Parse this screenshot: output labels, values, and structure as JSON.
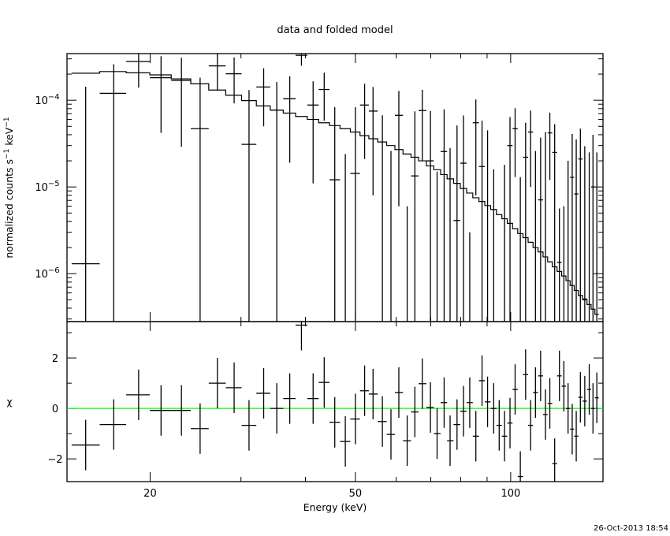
{
  "chart_data": [
    {
      "type": "scatter",
      "panel": "top",
      "title": "data and folded model",
      "ylabel": "normalized counts s⁻¹ keV⁻¹",
      "ylabel_parts": {
        "a": "normalized counts s",
        "b": "−1",
        "c": " keV",
        "d": "−1"
      },
      "xscale": "log",
      "yscale": "log",
      "xlim": [
        13.8,
        151
      ],
      "ylim": [
        2.8e-07,
        0.000345
      ],
      "ytick_values": [
        0.0001,
        1e-05,
        1e-06
      ],
      "ytick_labels": [
        {
          "base": "10",
          "exp": "−4"
        },
        {
          "base": "10",
          "exp": "−5"
        },
        {
          "base": "10",
          "exp": "−6"
        }
      ],
      "grid": false,
      "energies": [
        15.0,
        17.0,
        19.0,
        21.0,
        23.0,
        25.0,
        27.0,
        29.1,
        31.1,
        33.2,
        35.2,
        37.3,
        39.3,
        41.4,
        43.5,
        45.6,
        47.8,
        50.0,
        52.1,
        54.1,
        56.4,
        58.6,
        60.7,
        63.0,
        65.2,
        67.4,
        69.9,
        72.0,
        74.3,
        76.3,
        78.7,
        81.0,
        83.3,
        85.6,
        88.0,
        90.2,
        92.7,
        95.0,
        97.3,
        99.7,
        102.0,
        104.4,
        106.9,
        109.3,
        111.7,
        114.3,
        116.8,
        119.1,
        121.7,
        124.3,
        126.8,
        129.2,
        131.6,
        134.0,
        136.5,
        139.2,
        142.0,
        144.4,
        146.9
      ],
      "values": [
        1.3e-06,
        0.00012,
        0.00028,
        0.000182,
        0.000169,
        4.7e-05,
        0.000249,
        0.000202,
        3.1e-05,
        0.000142,
        7.7e-05,
        0.000104,
        0.00033,
        8.8e-05,
        0.000133,
        1.21e-05,
        -4e-05,
        1.43e-05,
        8.8e-05,
        7.5e-05,
        -1e-06,
        -3e-05,
        6.7e-05,
        -5e-05,
        1.34e-05,
        7.6e-05,
        2e-05,
        -3.5e-05,
        2.56e-05,
        -4e-05,
        4.1e-06,
        1.88e-05,
        -4e-05,
        5.5e-05,
        1.72e-05,
        -5e-06,
        -2.5e-05,
        -4.5e-05,
        -2.2e-05,
        3e-05,
        4.7e-05,
        -4e-05,
        2.2e-05,
        4.3e-05,
        -1e-05,
        7.1e-06,
        -1.5e-05,
        4.2e-05,
        2.5e-05,
        1.35e-06,
        -2e-05,
        -1e-05,
        1.29e-05,
        8.3e-06,
        2.1e-05,
        5.1e-07,
        -5e-06,
        1e-05,
        -1e-05
      ],
      "errors": [
        0.000142,
        0.00014,
        0.00014,
        0.00014,
        0.00014,
        0.000135,
        0.00012,
        0.00011,
        0.0001,
        9.2e-05,
        8.5e-05,
        8.5e-05,
        8e-05,
        7.7e-05,
        7.5e-05,
        7.1e-05,
        6.4e-05,
        6.9e-05,
        6.7e-05,
        6.7e-05,
        6.8e-05,
        5.6e-05,
        6.1e-05,
        5.6e-05,
        6.1e-05,
        5.6e-05,
        5.5e-05,
        5e-05,
        5.3e-05,
        6.8e-05,
        4.7e-05,
        4.8e-05,
        4.3e-05,
        4.7e-05,
        4.1e-05,
        5e-05,
        4.1e-05,
        4.5e-05,
        4e-05,
        3.4e-05,
        3.4e-05,
        5.3e-05,
        3.3e-05,
        3.3e-05,
        3.6e-05,
        3e-05,
        5.8e-05,
        3e-05,
        2.8e-05,
        4.3e-06,
        2.6e-05,
        3e-05,
        2.8e-05,
        2.7e-05,
        2.6e-05,
        2.9e-05,
        3e-05,
        3e-05,
        3.5e-05
      ],
      "model": [
        0.000205,
        0.000214,
        0.000207,
        0.000196,
        0.000176,
        0.000155,
        0.000131,
        0.000114,
        9.9e-05,
        8.6e-05,
        7.7e-05,
        7.1e-05,
        6.5e-05,
        6e-05,
        5.5e-05,
        5.1e-05,
        4.7e-05,
        4.3e-05,
        3.9e-05,
        3.6e-05,
        3.3e-05,
        3e-05,
        2.7e-05,
        2.4e-05,
        2.2e-05,
        2e-05,
        1.75e-05,
        1.58e-05,
        1.39e-05,
        1.24e-05,
        1.1e-05,
        9.6e-06,
        8.5e-06,
        7.5e-06,
        6.8e-06,
        6.1e-06,
        5.5e-06,
        4.8e-06,
        4.3e-06,
        3.8e-06,
        3.3e-06,
        2.9e-06,
        2.6e-06,
        2.3e-06,
        2e-06,
        1.78e-06,
        1.56e-06,
        1.37e-06,
        1.2e-06,
        1.06e-06,
        9.4e-07,
        8.3e-07,
        7.3e-07,
        6.4e-07,
        5.6e-07,
        5e-07,
        4.4e-07,
        3.9e-07,
        3.4e-07
      ]
    },
    {
      "type": "scatter",
      "panel": "bottom",
      "xlabel": "Energy (keV)",
      "ylabel": "χ",
      "xscale": "log",
      "xlim": [
        13.8,
        151
      ],
      "ylim": [
        -2.9,
        3.44
      ],
      "xtick_values": [
        20,
        50,
        100
      ],
      "xtick_labels": [
        "20",
        "50",
        "100"
      ],
      "ytick_values": [
        2,
        0,
        -2
      ],
      "ytick_labels": [
        "2",
        "0",
        "−2"
      ],
      "zero_line_color": "#00ff00",
      "residuals": [
        -1.45,
        -0.64,
        0.54,
        -0.08,
        -0.08,
        -0.8,
        1.0,
        0.82,
        -0.67,
        0.6,
        0.0,
        0.39,
        3.3,
        0.39,
        1.03,
        -0.55,
        -1.31,
        -0.42,
        0.7,
        0.57,
        -0.52,
        -1.03,
        0.63,
        -1.28,
        -0.14,
        0.98,
        0.04,
        -1.0,
        0.23,
        -1.28,
        -0.64,
        -0.11,
        0.23,
        -1.1,
        1.1,
        0.26,
        0.0,
        -0.67,
        -1.1,
        -0.58,
        0.75,
        -2.7,
        1.34,
        -0.67,
        0.63,
        1.29,
        -0.24,
        0.2,
        -2.19,
        1.29,
        0.88,
        0.0,
        -0.82,
        -1.1,
        0.44,
        0.29,
        0.75,
        0.0,
        0.42
      ],
      "residual_errors": 1.0
    }
  ],
  "footer": {
    "timestamp": "26-Oct-2013 18:54"
  }
}
